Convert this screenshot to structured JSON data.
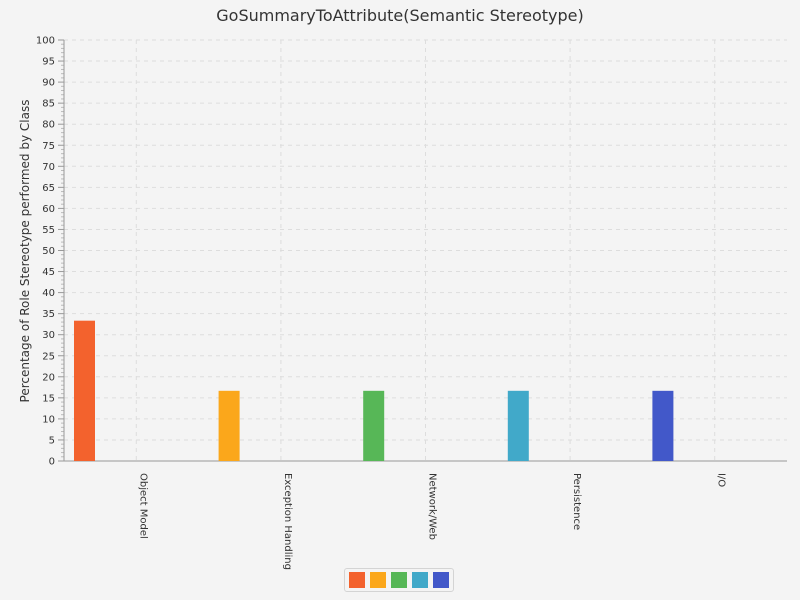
{
  "chart_data": {
    "type": "bar",
    "title": "GoSummaryToAttribute(Semantic Stereotype)",
    "ylabel": "Percentage of Role Stereotype performed by Class",
    "xlabel": "",
    "ylim": [
      0,
      100
    ],
    "ytick_step": 5,
    "grid": true,
    "legend": "bottom",
    "categories": [
      "Object Model",
      "Exception Handling",
      "Network/Web",
      "Persistence",
      "I/O"
    ],
    "values": [
      33.33,
      16.67,
      16.67,
      16.67,
      16.67
    ],
    "colors": [
      "#f3622d",
      "#fba71b",
      "#57b757",
      "#41a9c9",
      "#4258c9"
    ]
  }
}
